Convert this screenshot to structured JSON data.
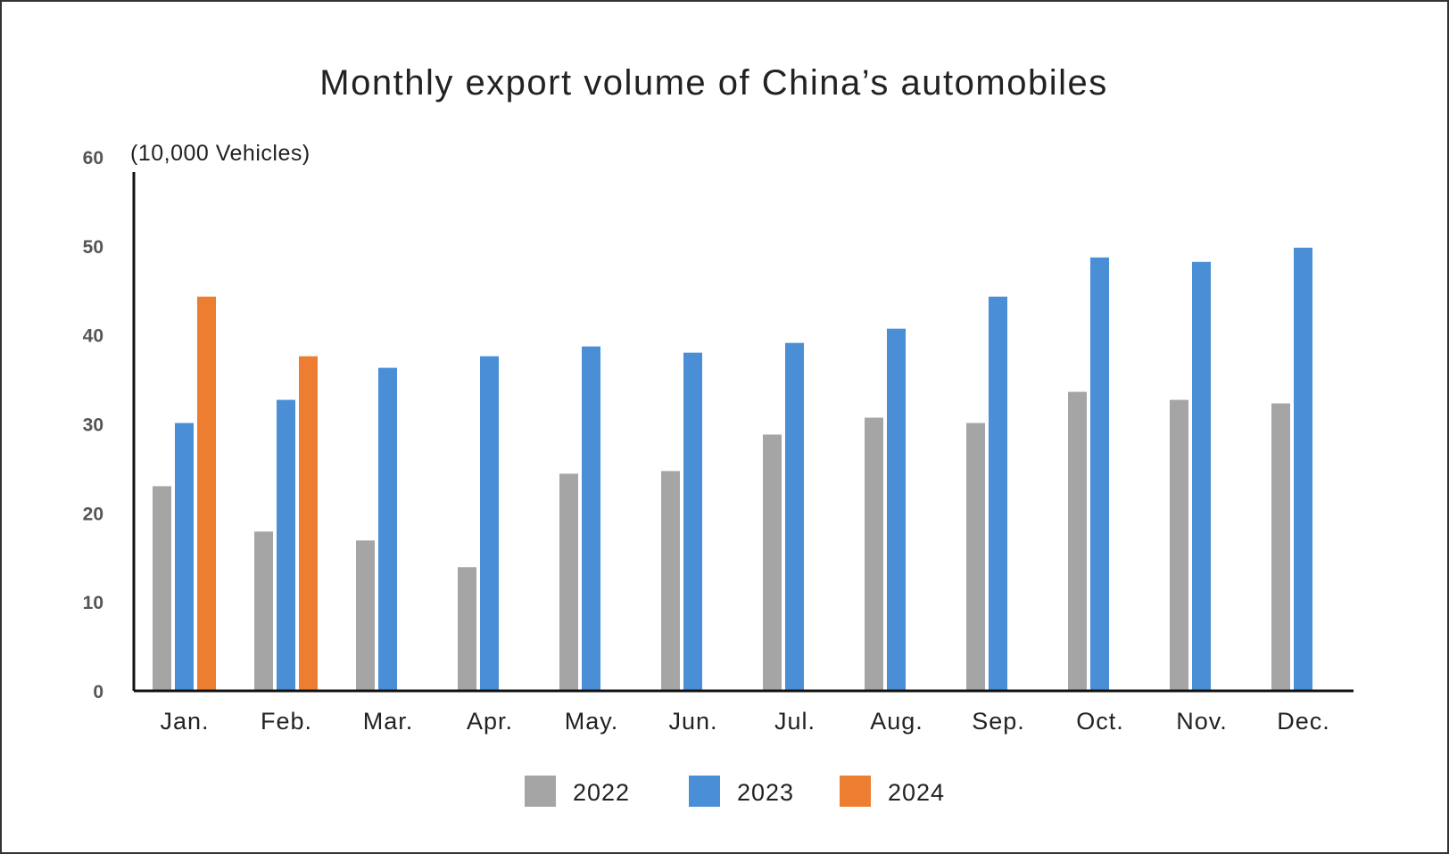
{
  "chart_data": {
    "type": "bar",
    "title": "Monthly export volume of China’s automobiles",
    "ylabel": "(10,000 Vehicles)",
    "xlabel": "",
    "ylim": [
      0,
      60
    ],
    "yticks": [
      0,
      10,
      20,
      30,
      40,
      50,
      60
    ],
    "grid": false,
    "legend_position": "bottom",
    "categories": [
      "Jan.",
      "Feb.",
      "Mar.",
      "Apr.",
      "May.",
      "Jun.",
      "Jul.",
      "Aug.",
      "Sep.",
      "Oct.",
      "Nov.",
      "Dec."
    ],
    "series": [
      {
        "name": "2022",
        "color": "#a5a5a5",
        "values": [
          23.0,
          17.9,
          16.9,
          13.9,
          24.4,
          24.7,
          28.8,
          30.7,
          30.1,
          33.6,
          32.7,
          32.3
        ]
      },
      {
        "name": "2023",
        "color": "#4a8fd6",
        "values": [
          30.1,
          32.7,
          36.3,
          37.6,
          38.7,
          38.0,
          39.1,
          40.7,
          44.3,
          48.7,
          48.2,
          49.8
        ]
      },
      {
        "name": "2024",
        "color": "#ed7d31",
        "values": [
          44.3,
          37.6,
          null,
          null,
          null,
          null,
          null,
          null,
          null,
          null,
          null,
          null
        ]
      }
    ]
  }
}
